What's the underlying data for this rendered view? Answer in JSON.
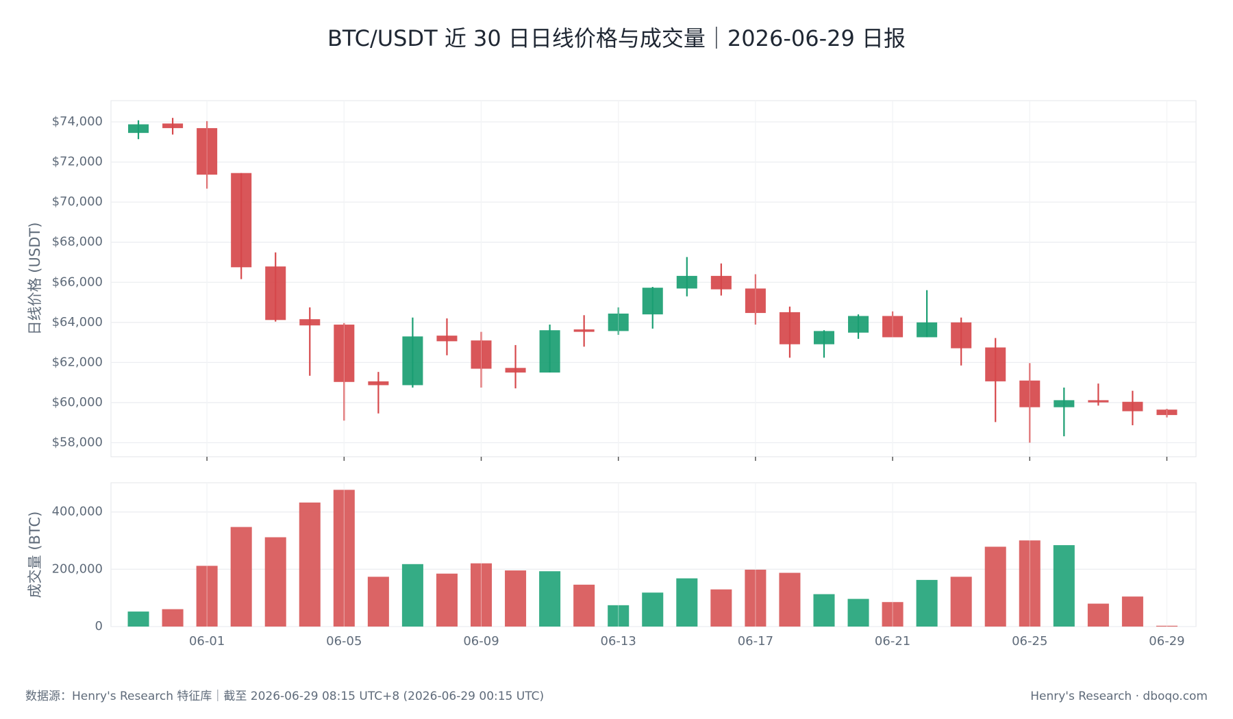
{
  "chart_data": [
    {
      "type": "candlestick",
      "title": "BTC/USDT 近 30 日日线价格与成交量｜2026-06-29 日报",
      "y_label": "日线价格 (USDT)",
      "categories": [
        null,
        null,
        "06-01",
        null,
        null,
        null,
        "06-05",
        null,
        null,
        null,
        "06-09",
        null,
        null,
        null,
        "06-13",
        null,
        null,
        null,
        "06-17",
        null,
        null,
        null,
        "06-21",
        null,
        null,
        null,
        "06-25",
        null,
        null,
        null,
        "06-29"
      ],
      "open": [
        73450,
        73920,
        73690,
        71450,
        66790,
        64160,
        63890,
        61060,
        60870,
        63340,
        63100,
        61730,
        61500,
        63650,
        63570,
        64400,
        65690,
        66320,
        65690,
        64510,
        62910,
        63490,
        64320,
        63260,
        64000,
        62750,
        61100,
        59770,
        60120,
        60040,
        59650
      ],
      "high": [
        74080,
        74200,
        74040,
        71450,
        67490,
        64750,
        63970,
        61530,
        64240,
        64200,
        63530,
        62870,
        63890,
        64360,
        64750,
        65770,
        67260,
        66940,
        66400,
        64790,
        63610,
        64400,
        64550,
        65610,
        64240,
        63220,
        61970,
        60750,
        60950,
        60590,
        59690
      ],
      "low": [
        73140,
        73370,
        70670,
        66160,
        64040,
        61340,
        59100,
        59460,
        60750,
        62360,
        60750,
        60710,
        61500,
        62790,
        63380,
        63690,
        65300,
        65340,
        63890,
        62240,
        62240,
        63180,
        63260,
        63260,
        61850,
        59030,
        58000,
        58320,
        59850,
        58870,
        59260
      ],
      "close": [
        73880,
        73690,
        71370,
        66750,
        64120,
        63850,
        61030,
        60870,
        63300,
        63060,
        61690,
        61500,
        63610,
        63530,
        64440,
        65730,
        66320,
        65650,
        64470,
        62910,
        63570,
        64320,
        63260,
        64000,
        62710,
        61060,
        59770,
        60120,
        60010,
        59570,
        59380
      ],
      "up_color": "#1a9e72",
      "down_color": "#d6484b",
      "ylim": [
        57300,
        75060
      ],
      "yticks": [
        {
          "value": 58000,
          "label": "$58,000"
        },
        {
          "value": 60000,
          "label": "$60,000"
        },
        {
          "value": 62000,
          "label": "$62,000"
        },
        {
          "value": 64000,
          "label": "$64,000"
        },
        {
          "value": 66000,
          "label": "$66,000"
        },
        {
          "value": 68000,
          "label": "$68,000"
        },
        {
          "value": 70000,
          "label": "$70,000"
        },
        {
          "value": 72000,
          "label": "$72,000"
        },
        {
          "value": 74000,
          "label": "$74,000"
        }
      ],
      "grid": true
    },
    {
      "type": "bar",
      "y_label": "成交量 (BTC)",
      "values": [
        52400,
        60700,
        212000,
        347600,
        311800,
        433000,
        477300,
        173800,
        218000,
        184800,
        220700,
        195900,
        193100,
        146200,
        74500,
        118600,
        168300,
        129700,
        198600,
        187600,
        113100,
        96600,
        85500,
        162800,
        173800,
        278700,
        300700,
        284200,
        80000,
        104800,
        2800
      ],
      "up_color": "#2aa87e",
      "down_color": "#d95c5d",
      "ylim": [
        0,
        502000
      ],
      "yticks": [
        0,
        {
          "value": 200000,
          "label": "200,000"
        },
        {
          "value": 400000,
          "label": "400,000"
        }
      ],
      "grid": true
    }
  ],
  "footer": {
    "source": "数据源：Henry's Research 特征库｜截至 2026-06-29 08:15 UTC+8 (2026-06-29 00:15 UTC)",
    "credit": "Henry's Research · dboqo.com"
  }
}
